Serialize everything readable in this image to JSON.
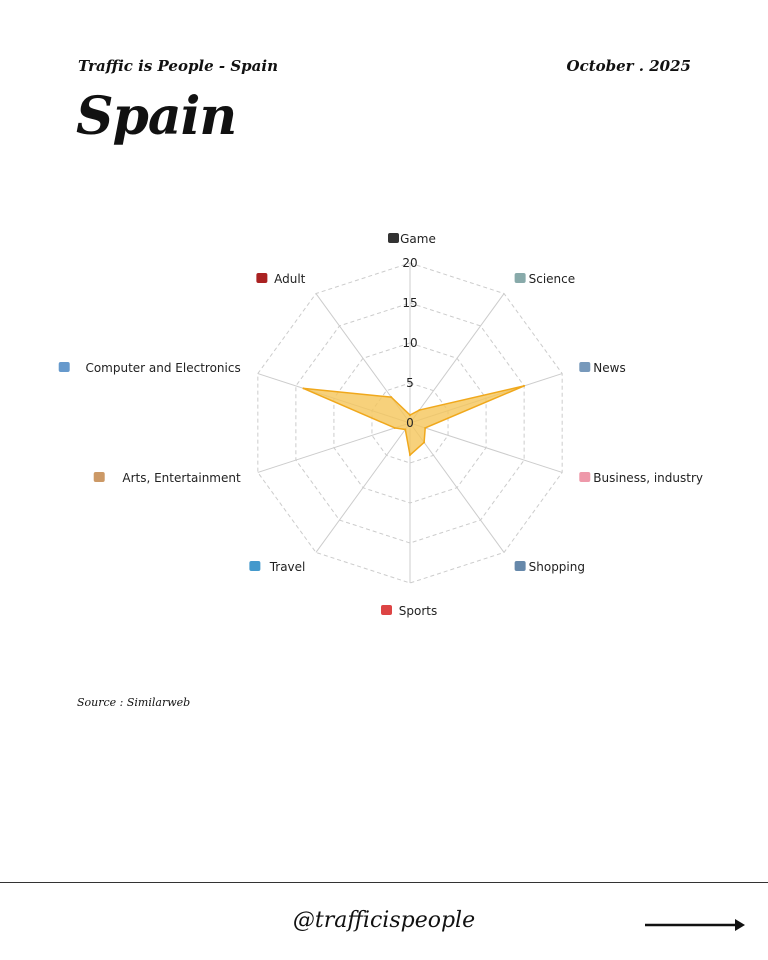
{
  "header": {
    "subtitle": "Traffic is People - Spain",
    "date": "October . 2025",
    "title": "Spain"
  },
  "source": "Source : Similarweb",
  "footer": {
    "handle": "@trafficispeople",
    "arrow_icon": "arrow-right-icon"
  },
  "chart_data": {
    "type": "radar",
    "categories": [
      "Game",
      "Science",
      "News",
      "Business, industry",
      "Shopping",
      "Sports",
      "Travel",
      "Arts, Entertainment",
      "Computer and Electronics",
      "Adult"
    ],
    "icons": [
      "game-controller-icon",
      "microscope-icon",
      "newspaper-icon",
      "businessperson-icon",
      "shopping-cart-icon",
      "cyclist-icon",
      "luggage-icon",
      "artist-icon",
      "laptop-icon",
      "adult-18-icon"
    ],
    "values": [
      1,
      2,
      15,
      2,
      3,
      4,
      1,
      2,
      14,
      4
    ],
    "rlim": [
      0,
      20
    ],
    "ticks": [
      0,
      5,
      10,
      15,
      20
    ],
    "fill_color": "#F5C55A",
    "stroke_color": "#F0A81C",
    "grid": true
  }
}
